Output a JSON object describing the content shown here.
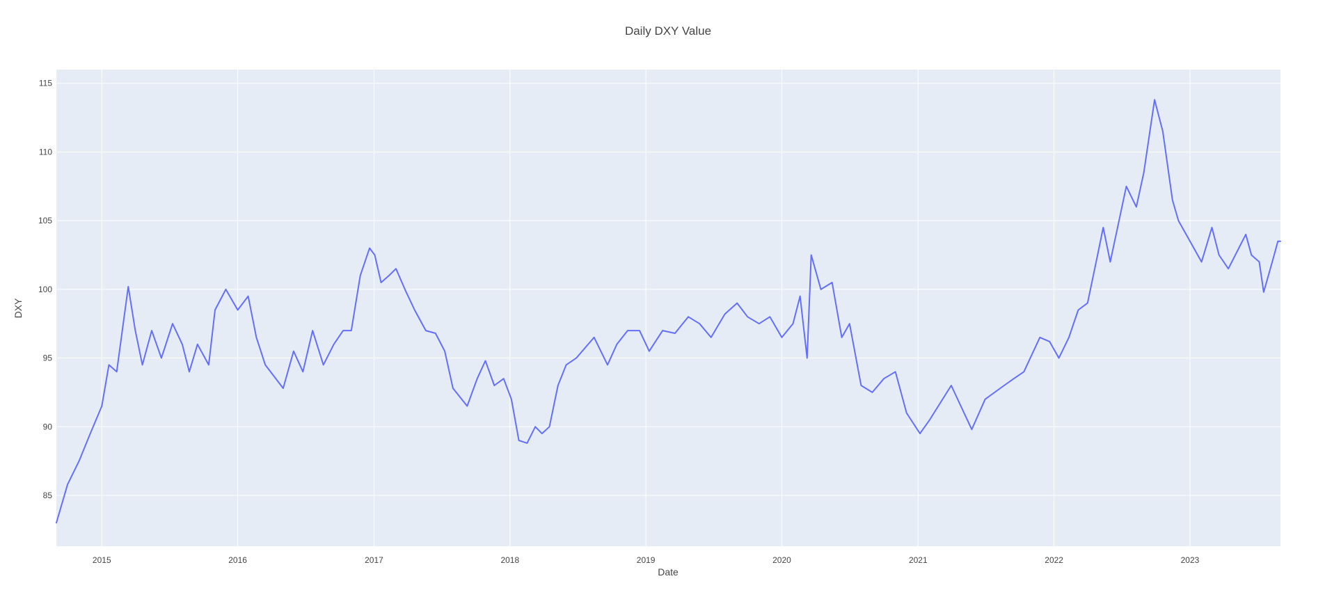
{
  "chart_data": {
    "type": "line",
    "title": "Daily DXY Value",
    "xlabel": "Date",
    "ylabel": "DXY",
    "xlim": [
      "2014-09-01",
      "2023-09-01"
    ],
    "ylim": [
      81.3,
      116.0
    ],
    "x_ticks": [
      "2015",
      "2016",
      "2017",
      "2018",
      "2019",
      "2020",
      "2021",
      "2022",
      "2023"
    ],
    "y_ticks": [
      85,
      90,
      95,
      100,
      105,
      110,
      115
    ],
    "grid": true,
    "legend": "none",
    "colors": {
      "line": "#636efa",
      "plot_bg": "#e5ecf6",
      "grid": "#ffffff",
      "text": "#444444"
    },
    "series": [
      {
        "x": [
          "2014-09-01",
          "2014-10-01",
          "2014-11-01",
          "2014-12-01",
          "2015-01-01",
          "2015-01-20",
          "2015-02-10",
          "2015-03-13",
          "2015-04-01",
          "2015-04-20",
          "2015-05-15",
          "2015-06-10",
          "2015-07-10",
          "2015-08-05",
          "2015-08-24",
          "2015-09-15",
          "2015-10-15",
          "2015-11-01",
          "2015-11-30",
          "2016-01-01",
          "2016-01-29",
          "2016-02-20",
          "2016-03-15",
          "2016-05-02",
          "2016-05-30",
          "2016-06-24",
          "2016-07-20",
          "2016-08-18",
          "2016-09-15",
          "2016-10-10",
          "2016-11-01",
          "2016-11-25",
          "2016-12-20",
          "2017-01-03",
          "2017-01-20",
          "2017-02-10",
          "2017-03-01",
          "2017-03-25",
          "2017-04-20",
          "2017-05-20",
          "2017-06-15",
          "2017-07-10",
          "2017-08-01",
          "2017-09-08",
          "2017-10-05",
          "2017-10-27",
          "2017-11-20",
          "2017-12-15",
          "2018-01-05",
          "2018-01-25",
          "2018-02-16",
          "2018-03-10",
          "2018-03-28",
          "2018-04-17",
          "2018-05-10",
          "2018-06-01",
          "2018-06-28",
          "2018-08-15",
          "2018-09-20",
          "2018-10-15",
          "2018-11-13",
          "2018-12-15",
          "2019-01-10",
          "2019-02-15",
          "2019-03-20",
          "2019-04-25",
          "2019-05-25",
          "2019-06-25",
          "2019-08-01",
          "2019-09-03",
          "2019-10-01",
          "2019-11-01",
          "2019-11-30",
          "2020-01-01",
          "2020-01-31",
          "2020-02-19",
          "2020-03-09",
          "2020-03-20",
          "2020-04-15",
          "2020-05-15",
          "2020-06-10",
          "2020-07-01",
          "2020-08-01",
          "2020-08-31",
          "2020-10-01",
          "2020-11-01",
          "2020-12-01",
          "2021-01-06",
          "2021-02-01",
          "2021-03-31",
          "2021-05-25",
          "2021-06-30",
          "2021-08-20",
          "2021-09-15",
          "2021-10-12",
          "2021-11-24",
          "2021-12-20",
          "2022-01-14",
          "2022-02-10",
          "2022-03-07",
          "2022-04-01",
          "2022-04-28",
          "2022-05-13",
          "2022-06-01",
          "2022-07-14",
          "2022-08-10",
          "2022-08-30",
          "2022-09-28",
          "2022-10-20",
          "2022-11-15",
          "2022-12-01",
          "2023-01-01",
          "2023-02-01",
          "2023-03-01",
          "2023-03-20",
          "2023-04-14",
          "2023-05-31",
          "2023-06-15",
          "2023-07-06",
          "2023-07-18",
          "2023-08-10",
          "2023-08-25",
          "2023-09-01"
        ],
        "values": [
          83.0,
          85.8,
          87.5,
          89.5,
          91.5,
          94.5,
          94.0,
          100.2,
          97.0,
          94.5,
          97.0,
          95.0,
          97.5,
          96.0,
          94.0,
          96.0,
          94.5,
          98.5,
          100.0,
          98.5,
          99.5,
          96.5,
          94.5,
          92.8,
          95.5,
          94.0,
          97.0,
          94.5,
          96.0,
          97.0,
          97.0,
          101.0,
          103.0,
          102.5,
          100.5,
          101.0,
          101.5,
          100.0,
          98.5,
          97.0,
          96.8,
          95.5,
          92.8,
          91.5,
          93.5,
          94.8,
          93.0,
          93.5,
          92.0,
          89.0,
          88.8,
          90.0,
          89.5,
          90.0,
          93.0,
          94.5,
          95.0,
          96.5,
          94.5,
          96.0,
          97.0,
          97.0,
          95.5,
          97.0,
          96.8,
          98.0,
          97.5,
          96.5,
          98.2,
          99.0,
          98.0,
          97.5,
          98.0,
          96.5,
          97.5,
          99.5,
          95.0,
          102.5,
          100.0,
          100.5,
          96.5,
          97.5,
          93.0,
          92.5,
          93.5,
          94.0,
          91.0,
          89.5,
          90.5,
          93.0,
          89.8,
          92.0,
          93.0,
          93.5,
          94.0,
          96.5,
          96.2,
          95.0,
          96.5,
          98.5,
          99.0,
          102.5,
          104.5,
          102.0,
          107.5,
          106.0,
          108.5,
          113.8,
          111.5,
          106.5,
          105.0,
          103.5,
          102.0,
          104.5,
          102.5,
          101.5,
          104.0,
          102.5,
          102.0,
          99.8,
          102.0,
          103.5,
          103.5
        ]
      }
    ]
  }
}
